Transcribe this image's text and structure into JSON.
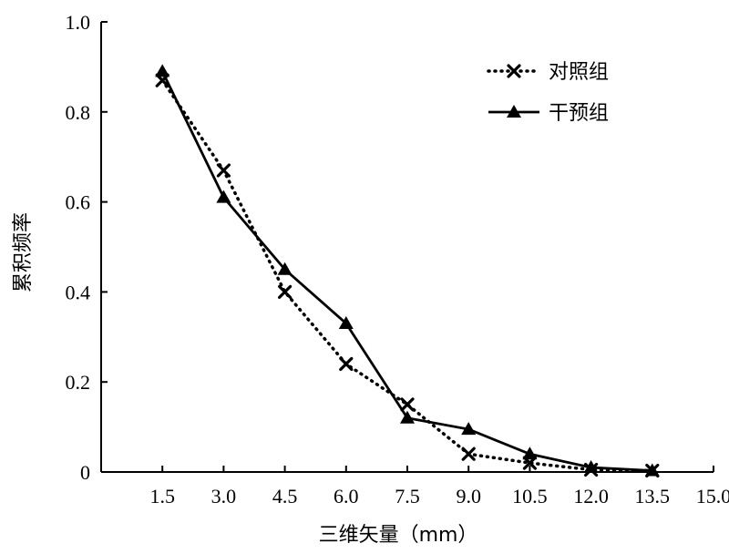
{
  "chart_data": {
    "type": "line",
    "title": "",
    "xlabel": "三维矢量（mm）",
    "ylabel": "累积频率",
    "x_ticks": [
      "1.5",
      "3.0",
      "4.5",
      "6.0",
      "7.5",
      "9.0",
      "10.5",
      "12.0",
      "13.5",
      "15.0"
    ],
    "y_ticks": [
      "0",
      "0.2",
      "0.4",
      "0.6",
      "0.8",
      "1.0"
    ],
    "xlim": [
      0,
      15
    ],
    "ylim": [
      0,
      1.0
    ],
    "grid": false,
    "legend_position": "top-right",
    "series": [
      {
        "name": "对照组",
        "style": "dotted",
        "marker": "x",
        "color": "#000000",
        "x": [
          1.5,
          3.0,
          4.5,
          6.0,
          7.5,
          9.0,
          10.5,
          12.0,
          13.5
        ],
        "y": [
          0.87,
          0.67,
          0.4,
          0.24,
          0.15,
          0.04,
          0.02,
          0.005,
          0.003
        ]
      },
      {
        "name": "干预组",
        "style": "solid",
        "marker": "triangle",
        "color": "#000000",
        "x": [
          1.5,
          3.0,
          4.5,
          6.0,
          7.5,
          9.0,
          10.5,
          12.0,
          13.5
        ],
        "y": [
          0.89,
          0.61,
          0.45,
          0.33,
          0.12,
          0.095,
          0.04,
          0.01,
          0.003
        ]
      }
    ]
  }
}
